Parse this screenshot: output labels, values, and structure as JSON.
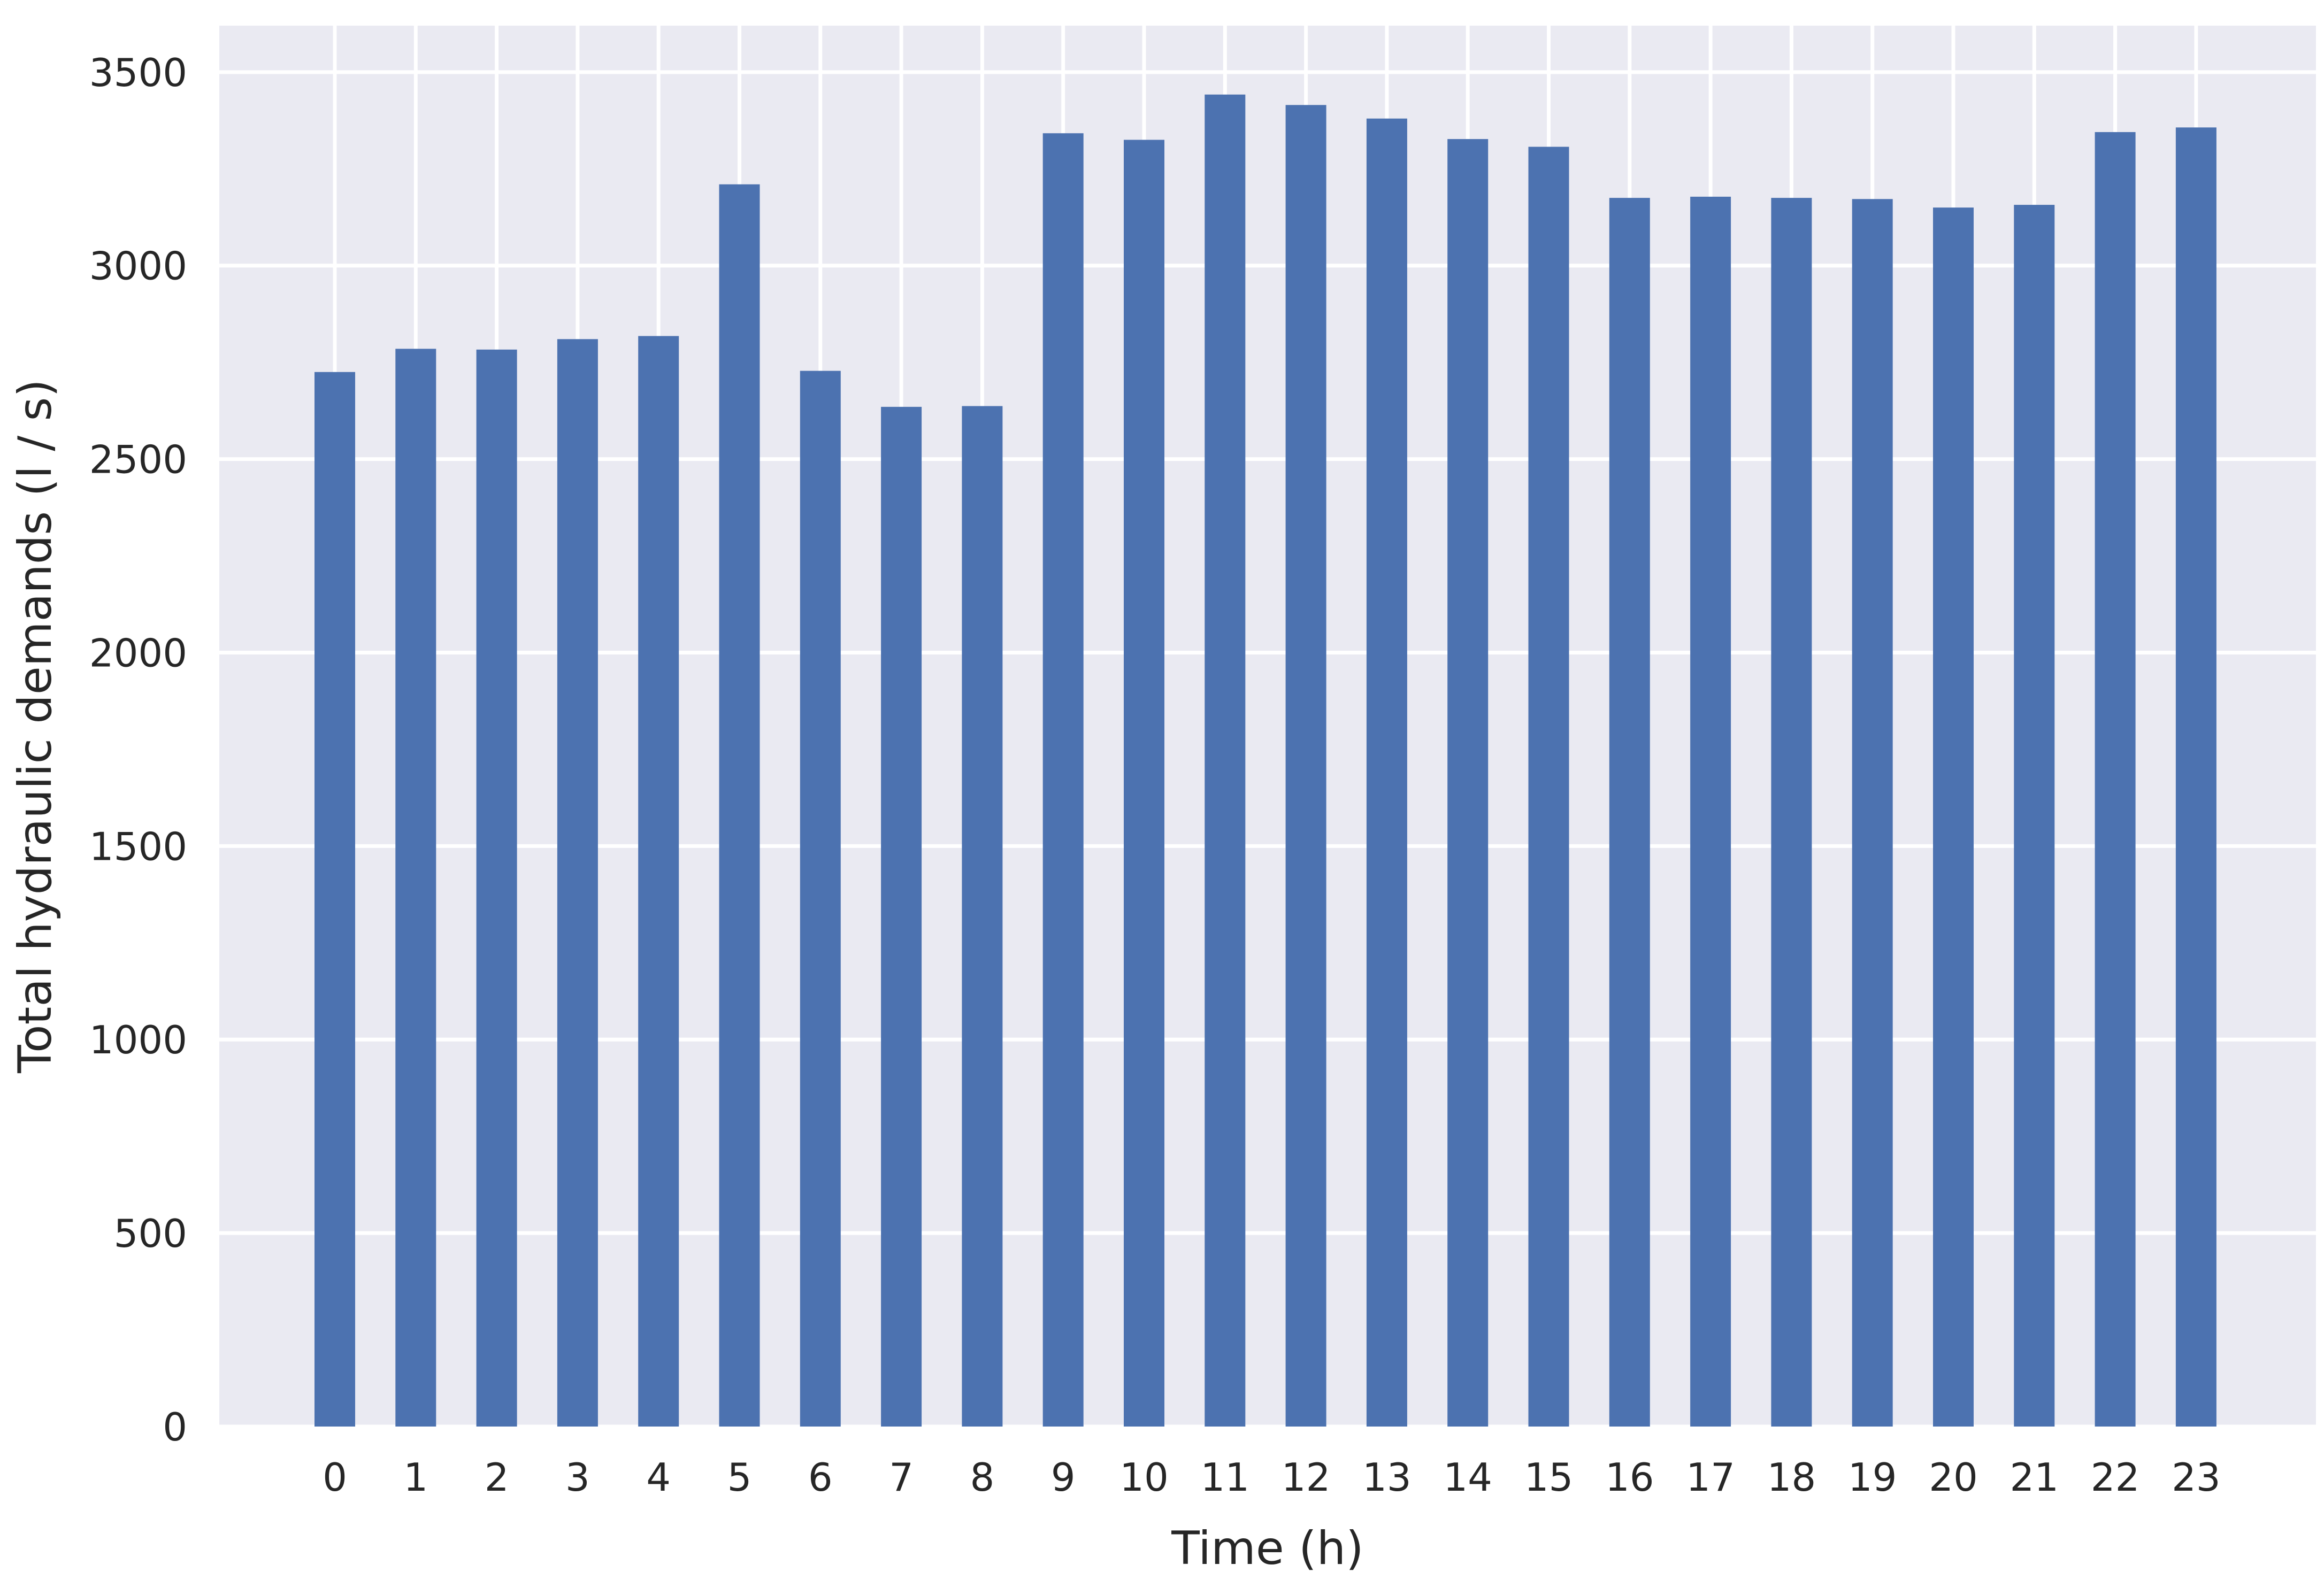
{
  "chart_data": {
    "type": "bar",
    "title": "",
    "xlabel": "Time (h)",
    "ylabel": "Total hydraulic demands (l / s)",
    "categories": [
      "0",
      "1",
      "2",
      "3",
      "4",
      "5",
      "6",
      "7",
      "8",
      "9",
      "10",
      "11",
      "12",
      "13",
      "14",
      "15",
      "16",
      "17",
      "18",
      "19",
      "20",
      "21",
      "22",
      "23"
    ],
    "values": [
      2725,
      2785,
      2783,
      2810,
      2818,
      3210,
      2728,
      2635,
      2637,
      3342,
      3325,
      3442,
      3415,
      3380,
      3327,
      3307,
      3175,
      3178,
      3175,
      3172,
      3150,
      3157,
      3345,
      3357
    ],
    "ylim": [
      0,
      3620
    ],
    "yticks": [
      "0",
      "500",
      "1000",
      "1500",
      "2000",
      "2500",
      "3000",
      "3500"
    ],
    "grid": true,
    "bar_color": "#4c72b0",
    "background_color": "#eaeaf2",
    "grid_color": "#ffffff"
  }
}
